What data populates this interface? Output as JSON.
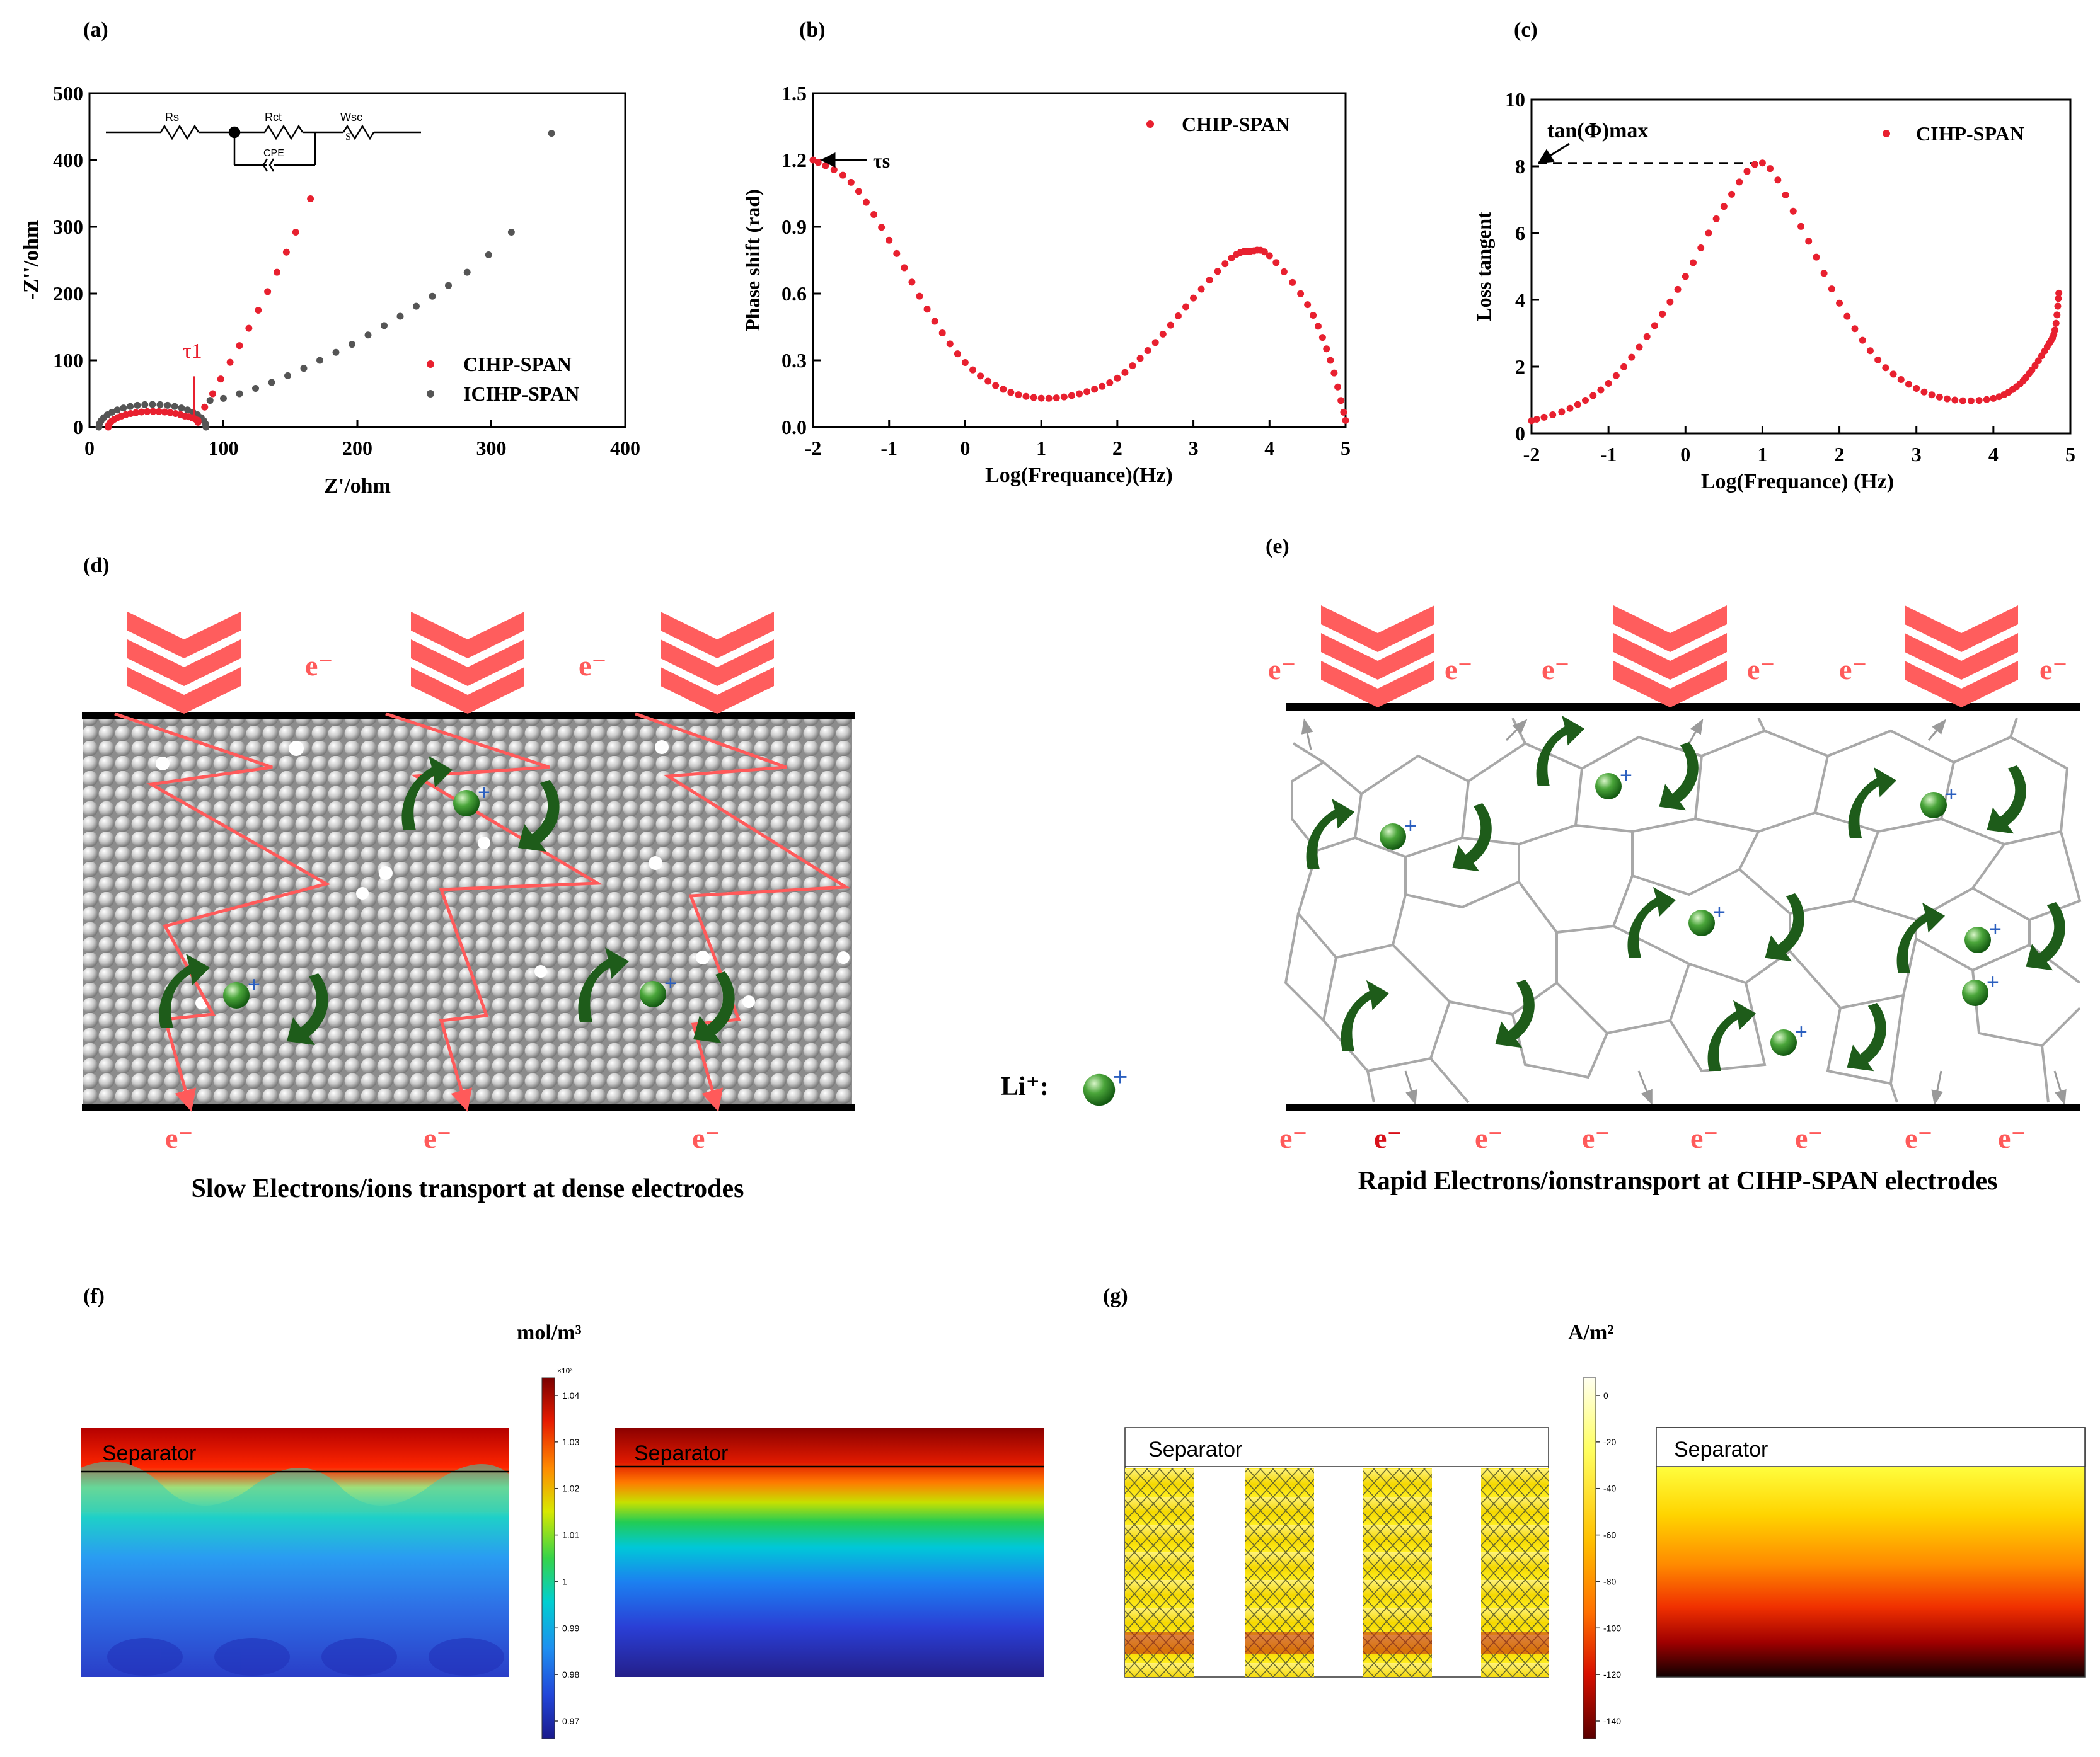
{
  "panels": {
    "a": "(a)",
    "b": "(b)",
    "c": "(c)",
    "d": "(d)",
    "e": "(e)",
    "f": "(f)",
    "g": "(g)"
  },
  "chart_data": [
    {
      "id": "a",
      "type": "scatter",
      "xlabel": "Z'/ohm",
      "ylabel": "-Z''/ohm",
      "xlim": [
        0,
        400
      ],
      "ylim": [
        0,
        500
      ],
      "xticks": [
        "0",
        "100",
        "200",
        "300",
        "400"
      ],
      "yticks": [
        "0",
        "100",
        "200",
        "300",
        "400",
        "500"
      ],
      "annotation": "τ1",
      "annotation_value": [
        78,
        10
      ],
      "circuit_labels": [
        "Rs",
        "Rct",
        "Wsc",
        "CPE"
      ],
      "series": [
        {
          "name": "CIHP-SPAN",
          "color": "#e8202f",
          "semicircle": {
            "center": 47.5,
            "radius": 33.5
          },
          "tail": [
            [
              81,
              10
            ],
            [
              86,
              30
            ],
            [
              92,
              50
            ],
            [
              98,
              72
            ],
            [
              105,
              97
            ],
            [
              112,
              122
            ],
            [
              119,
              148
            ],
            [
              126,
              175
            ],
            [
              133,
              203
            ],
            [
              140,
              232
            ],
            [
              147,
              262
            ],
            [
              154,
              292
            ],
            [
              165,
              342
            ]
          ]
        },
        {
          "name": "ICIHP-SPAN",
          "color": "#555555",
          "semicircle": {
            "center": 47,
            "radius": 40,
            "flatten": 0.85
          },
          "tail": [
            [
              90,
              40
            ],
            [
              100,
              43
            ],
            [
              112,
              50
            ],
            [
              124,
              58
            ],
            [
              136,
              67
            ],
            [
              148,
              77
            ],
            [
              160,
              88
            ],
            [
              172,
              100
            ],
            [
              184,
              112
            ],
            [
              196,
              124
            ],
            [
              208,
              138
            ],
            [
              220,
              152
            ],
            [
              232,
              166
            ],
            [
              244,
              181
            ],
            [
              256,
              196
            ],
            [
              268,
              212
            ],
            [
              282,
              232
            ],
            [
              298,
              258
            ],
            [
              315,
              292
            ],
            [
              345,
              440
            ]
          ]
        }
      ]
    },
    {
      "id": "b",
      "type": "scatter",
      "xlabel": "Log(Frequance)(Hz)",
      "ylabel": "Phase shift (rad)",
      "xlim": [
        -2,
        5
      ],
      "ylim": [
        0,
        1.5
      ],
      "xticks": [
        "-2",
        "-1",
        "0",
        "1",
        "2",
        "3",
        "4",
        "5"
      ],
      "yticks": [
        "0.0",
        "0.3",
        "0.6",
        "0.9",
        "1.2",
        "1.5"
      ],
      "annotation": "τs",
      "annotation_value": [
        -2,
        1.2
      ],
      "series": [
        {
          "name": "CHIP-SPAN",
          "color": "#e8202f",
          "points": [
            [
              -2,
              1.2
            ],
            [
              -1.5,
              1.1
            ],
            [
              -1,
              0.84
            ],
            [
              -0.5,
              0.53
            ],
            [
              0,
              0.29
            ],
            [
              0.5,
              0.17
            ],
            [
              1,
              0.13
            ],
            [
              1.5,
              0.15
            ],
            [
              2,
              0.22
            ],
            [
              2.5,
              0.38
            ],
            [
              3,
              0.58
            ],
            [
              3.5,
              0.76
            ],
            [
              3.75,
              0.79
            ],
            [
              4,
              0.77
            ],
            [
              4.5,
              0.55
            ],
            [
              4.8,
              0.3
            ],
            [
              5,
              0.03
            ]
          ]
        }
      ]
    },
    {
      "id": "c",
      "type": "scatter",
      "xlabel": "Log(Frequance) (Hz)",
      "ylabel": "Loss tangent",
      "xlim": [
        -2,
        5
      ],
      "ylim": [
        0,
        10
      ],
      "xticks": [
        "-2",
        "-1",
        "0",
        "1",
        "2",
        "3",
        "4",
        "5"
      ],
      "yticks": [
        "0",
        "2",
        "4",
        "6",
        "8",
        "10"
      ],
      "annotation": "tan(Φ)max",
      "annotation_value": [
        1,
        8.1
      ],
      "series": [
        {
          "name": "CIHP-SPAN",
          "color": "#e8202f",
          "points": [
            [
              -2,
              0.38
            ],
            [
              -1.5,
              0.75
            ],
            [
              -1,
              1.5
            ],
            [
              -0.5,
              2.9
            ],
            [
              0,
              4.7
            ],
            [
              0.5,
              6.8
            ],
            [
              1,
              8.1
            ],
            [
              1.5,
              6.2
            ],
            [
              2,
              3.9
            ],
            [
              2.5,
              2.2
            ],
            [
              3,
              1.35
            ],
            [
              3.5,
              1.0
            ],
            [
              4,
              1.05
            ],
            [
              4.3,
              1.4
            ],
            [
              4.5,
              1.9
            ],
            [
              4.7,
              2.6
            ],
            [
              4.8,
              3.1
            ],
            [
              4.85,
              4.2
            ]
          ]
        }
      ]
    },
    {
      "id": "f-colorbar",
      "type": "heatmap",
      "unit": "mol/m³",
      "multiplier": "×10³",
      "ticks": [
        "1.04",
        "1.03",
        "1.02",
        "1.01",
        "1",
        "0.99",
        "0.98",
        "0.97"
      ],
      "range": [
        0.965,
        1.045
      ]
    },
    {
      "id": "g-colorbar",
      "type": "heatmap",
      "unit": "A/m²",
      "ticks": [
        "0",
        "-20",
        "-40",
        "-60",
        "-80",
        "-100",
        "-120",
        "-140"
      ],
      "range": [
        -140,
        0
      ]
    }
  ],
  "schematic_d": {
    "electron_labels": [
      "e⁻",
      "e⁻",
      "e⁻",
      "e⁻",
      "e⁻"
    ],
    "caption": "Slow Electrons/ions transport at dense electrodes"
  },
  "legend_li": {
    "label": "Li⁺:"
  },
  "schematic_e": {
    "electron_labels": [
      "e⁻",
      "e⁻",
      "e⁻",
      "e⁻",
      "e⁻",
      "e⁻",
      "e⁻",
      "e⁻",
      "e⁻",
      "e⁻",
      "e⁻",
      "e⁻",
      "e⁻",
      "e⁻"
    ],
    "caption": "Rapid Electrons/ionstransport at CIHP-SPAN electrodes"
  },
  "sim_f": {
    "separator_left": "Separator",
    "separator_right": "Separator"
  },
  "sim_g": {
    "separator_left": "Separator",
    "separator_right": "Separator"
  }
}
